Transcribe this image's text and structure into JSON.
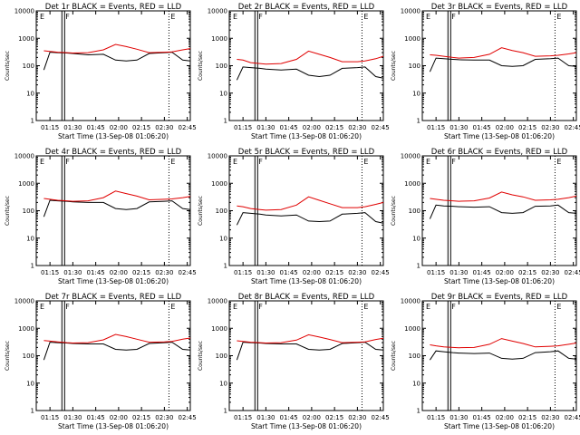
{
  "colors": {
    "events": "#000000",
    "lld": "#e00000",
    "axis": "#000000"
  },
  "chart_data": [
    {
      "type": "line",
      "title": "Det 1r BLACK = Events, RED = LLD",
      "xlabel": "Start Time (13-Sep-08 01:06:20)",
      "ylabel": "Counts/sec",
      "y_scale": "log",
      "ylim": [
        1,
        10000
      ],
      "x": [
        "01:11",
        "01:15",
        "01:20",
        "01:26",
        "01:30",
        "01:40",
        "01:50",
        "01:58",
        "02:05",
        "02:12",
        "02:20",
        "02:30",
        "02:35",
        "02:42",
        "02:47"
      ],
      "xtick_labels": [
        "01:15",
        "01:30",
        "01:45",
        "02:00",
        "02:15",
        "02:30",
        "02:45"
      ],
      "ytick_labels": [
        "1",
        "10",
        "100",
        "1000",
        "10000"
      ],
      "markers": [
        {
          "label": "E",
          "time": "01:06"
        },
        {
          "label": "F",
          "time": "01:24"
        },
        {
          "label": "E",
          "time": "02:33"
        }
      ],
      "series": [
        {
          "name": "Events",
          "values": [
            70,
            310,
            300,
            290,
            280,
            250,
            260,
            160,
            150,
            160,
            280,
            300,
            310,
            160,
            150
          ]
        },
        {
          "name": "LLD",
          "values": [
            350,
            330,
            310,
            300,
            290,
            300,
            380,
            600,
            500,
            400,
            300,
            310,
            320,
            380,
            420
          ]
        }
      ]
    },
    {
      "type": "line",
      "title": "Det 2r BLACK = Events, RED = LLD",
      "xlabel": "Start Time (13-Sep-08 01:06:20)",
      "ylabel": "Counts/sec",
      "y_scale": "log",
      "ylim": [
        1,
        10000
      ],
      "x": [
        "01:11",
        "01:15",
        "01:20",
        "01:26",
        "01:30",
        "01:40",
        "01:50",
        "01:58",
        "02:05",
        "02:12",
        "02:20",
        "02:30",
        "02:35",
        "02:42",
        "02:47"
      ],
      "xtick_labels": [
        "01:15",
        "01:30",
        "01:45",
        "02:00",
        "02:15",
        "02:30",
        "02:45"
      ],
      "ytick_labels": [
        "1",
        "10",
        "100",
        "1000",
        "10000"
      ],
      "markers": [
        {
          "label": "E",
          "time": "01:06"
        },
        {
          "label": "F",
          "time": "01:24"
        },
        {
          "label": "E",
          "time": "02:33"
        }
      ],
      "series": [
        {
          "name": "Events",
          "values": [
            30,
            90,
            85,
            80,
            75,
            70,
            75,
            45,
            40,
            45,
            80,
            85,
            90,
            40,
            35
          ]
        },
        {
          "name": "LLD",
          "values": [
            170,
            160,
            130,
            120,
            115,
            120,
            170,
            340,
            260,
            200,
            140,
            140,
            150,
            180,
            220
          ]
        }
      ]
    },
    {
      "type": "line",
      "title": "Det 3r BLACK = Events, RED = LLD",
      "xlabel": "Start Time (13-Sep-08 01:06:20)",
      "ylabel": "Counts/sec",
      "y_scale": "log",
      "ylim": [
        1,
        10000
      ],
      "x": [
        "01:11",
        "01:15",
        "01:20",
        "01:26",
        "01:30",
        "01:40",
        "01:50",
        "01:58",
        "02:05",
        "02:12",
        "02:20",
        "02:30",
        "02:35",
        "02:42",
        "02:47"
      ],
      "xtick_labels": [
        "01:15",
        "01:30",
        "01:45",
        "02:00",
        "02:15",
        "02:30",
        "02:45"
      ],
      "ytick_labels": [
        "1",
        "10",
        "100",
        "1000",
        "10000"
      ],
      "markers": [
        {
          "label": "E",
          "time": "01:06"
        },
        {
          "label": "F",
          "time": "01:24"
        },
        {
          "label": "E",
          "time": "02:33"
        }
      ],
      "series": [
        {
          "name": "Events",
          "values": [
            60,
            190,
            180,
            170,
            165,
            160,
            160,
            100,
            95,
            100,
            170,
            180,
            190,
            100,
            95
          ]
        },
        {
          "name": "LLD",
          "values": [
            250,
            240,
            220,
            200,
            190,
            200,
            260,
            450,
            360,
            300,
            220,
            230,
            240,
            270,
            300
          ]
        }
      ]
    },
    {
      "type": "line",
      "title": "Det 4r BLACK = Events, RED = LLD",
      "xlabel": "Start Time (13-Sep-08 01:06:20)",
      "ylabel": "Counts/sec",
      "y_scale": "log",
      "ylim": [
        1,
        10000
      ],
      "x": [
        "01:11",
        "01:15",
        "01:20",
        "01:26",
        "01:30",
        "01:40",
        "01:50",
        "01:58",
        "02:05",
        "02:12",
        "02:20",
        "02:30",
        "02:35",
        "02:42",
        "02:47"
      ],
      "xtick_labels": [
        "01:15",
        "01:30",
        "01:45",
        "02:00",
        "02:15",
        "02:30",
        "02:45"
      ],
      "ytick_labels": [
        "1",
        "10",
        "100",
        "1000",
        "10000"
      ],
      "markers": [
        {
          "label": "E",
          "time": "01:06"
        },
        {
          "label": "F",
          "time": "01:24"
        },
        {
          "label": "E",
          "time": "02:33"
        }
      ],
      "series": [
        {
          "name": "Events",
          "values": [
            60,
            240,
            230,
            220,
            210,
            200,
            200,
            120,
            110,
            120,
            210,
            220,
            230,
            120,
            110
          ]
        },
        {
          "name": "LLD",
          "values": [
            280,
            260,
            240,
            230,
            220,
            230,
            300,
            520,
            420,
            340,
            250,
            260,
            270,
            300,
            330
          ]
        }
      ]
    },
    {
      "type": "line",
      "title": "Det 5r BLACK = Events, RED = LLD",
      "xlabel": "Start Time (13-Sep-08 01:06:20)",
      "ylabel": "Counts/sec",
      "y_scale": "log",
      "ylim": [
        1,
        10000
      ],
      "x": [
        "01:11",
        "01:15",
        "01:20",
        "01:26",
        "01:30",
        "01:40",
        "01:50",
        "01:58",
        "02:05",
        "02:12",
        "02:20",
        "02:30",
        "02:35",
        "02:42",
        "02:47"
      ],
      "xtick_labels": [
        "01:15",
        "01:30",
        "01:45",
        "02:00",
        "02:15",
        "02:30",
        "02:45"
      ],
      "ytick_labels": [
        "1",
        "10",
        "100",
        "1000",
        "10000"
      ],
      "markers": [
        {
          "label": "E",
          "time": "01:06"
        },
        {
          "label": "F",
          "time": "01:24"
        },
        {
          "label": "E",
          "time": "02:33"
        }
      ],
      "series": [
        {
          "name": "Events",
          "values": [
            30,
            85,
            80,
            75,
            70,
            65,
            70,
            42,
            40,
            42,
            75,
            80,
            85,
            40,
            35
          ]
        },
        {
          "name": "LLD",
          "values": [
            150,
            140,
            120,
            110,
            105,
            110,
            160,
            320,
            240,
            180,
            130,
            130,
            140,
            170,
            200
          ]
        }
      ]
    },
    {
      "type": "line",
      "title": "Det 6r BLACK = Events, RED = LLD",
      "xlabel": "Start Time (13-Sep-08 01:06:20)",
      "ylabel": "Counts/sec",
      "y_scale": "log",
      "ylim": [
        1,
        10000
      ],
      "x": [
        "01:11",
        "01:15",
        "01:20",
        "01:26",
        "01:30",
        "01:40",
        "01:50",
        "01:58",
        "02:05",
        "02:12",
        "02:20",
        "02:30",
        "02:35",
        "02:42",
        "02:47"
      ],
      "xtick_labels": [
        "01:15",
        "01:30",
        "01:45",
        "02:00",
        "02:15",
        "02:30",
        "02:45"
      ],
      "ytick_labels": [
        "1",
        "10",
        "100",
        "1000",
        "10000"
      ],
      "markers": [
        {
          "label": "E",
          "time": "01:06"
        },
        {
          "label": "F",
          "time": "01:24"
        },
        {
          "label": "E",
          "time": "02:33"
        }
      ],
      "series": [
        {
          "name": "Events",
          "values": [
            50,
            160,
            150,
            145,
            140,
            135,
            140,
            85,
            80,
            85,
            145,
            150,
            160,
            85,
            80
          ]
        },
        {
          "name": "LLD",
          "values": [
            280,
            260,
            240,
            230,
            220,
            230,
            290,
            480,
            380,
            320,
            240,
            250,
            260,
            300,
            340
          ]
        }
      ]
    },
    {
      "type": "line",
      "title": "Det 7r BLACK = Events, RED = LLD",
      "xlabel": "Start Time (13-Sep-08 01:06:20)",
      "ylabel": "Counts/sec",
      "y_scale": "log",
      "ylim": [
        1,
        10000
      ],
      "x": [
        "01:11",
        "01:15",
        "01:20",
        "01:26",
        "01:30",
        "01:40",
        "01:50",
        "01:58",
        "02:05",
        "02:12",
        "02:20",
        "02:30",
        "02:35",
        "02:42",
        "02:47"
      ],
      "xtick_labels": [
        "01:15",
        "01:30",
        "01:45",
        "02:00",
        "02:15",
        "02:30",
        "02:45"
      ],
      "ytick_labels": [
        "1",
        "10",
        "100",
        "1000",
        "10000"
      ],
      "markers": [
        {
          "label": "E",
          "time": "01:06"
        },
        {
          "label": "F",
          "time": "01:24"
        },
        {
          "label": "E",
          "time": "02:33"
        }
      ],
      "series": [
        {
          "name": "Events",
          "values": [
            70,
            310,
            300,
            290,
            280,
            270,
            270,
            170,
            160,
            170,
            280,
            300,
            310,
            170,
            160
          ]
        },
        {
          "name": "LLD",
          "values": [
            360,
            340,
            320,
            300,
            290,
            300,
            380,
            600,
            500,
            400,
            310,
            320,
            330,
            400,
            440
          ]
        }
      ]
    },
    {
      "type": "line",
      "title": "Det 8r BLACK = Events, RED = LLD",
      "xlabel": "Start Time (13-Sep-08 01:06:20)",
      "ylabel": "Counts/sec",
      "y_scale": "log",
      "ylim": [
        1,
        10000
      ],
      "x": [
        "01:11",
        "01:15",
        "01:20",
        "01:26",
        "01:30",
        "01:40",
        "01:50",
        "01:58",
        "02:05",
        "02:12",
        "02:20",
        "02:30",
        "02:35",
        "02:42",
        "02:47"
      ],
      "xtick_labels": [
        "01:15",
        "01:30",
        "01:45",
        "02:00",
        "02:15",
        "02:30",
        "02:45"
      ],
      "ytick_labels": [
        "1",
        "10",
        "100",
        "1000",
        "10000"
      ],
      "markers": [
        {
          "label": "E",
          "time": "01:06"
        },
        {
          "label": "F",
          "time": "01:24"
        },
        {
          "label": "E",
          "time": "02:33"
        }
      ],
      "series": [
        {
          "name": "Events",
          "values": [
            70,
            310,
            300,
            290,
            280,
            270,
            270,
            170,
            160,
            170,
            280,
            300,
            310,
            170,
            160
          ]
        },
        {
          "name": "LLD",
          "values": [
            350,
            330,
            310,
            300,
            290,
            300,
            370,
            580,
            480,
            390,
            300,
            310,
            320,
            390,
            430
          ]
        }
      ]
    },
    {
      "type": "line",
      "title": "Det 9r BLACK = Events, RED = LLD",
      "xlabel": "Start Time (13-Sep-08 01:06:20)",
      "ylabel": "Counts/sec",
      "y_scale": "log",
      "ylim": [
        1,
        10000
      ],
      "x": [
        "01:11",
        "01:15",
        "01:20",
        "01:26",
        "01:30",
        "01:40",
        "01:50",
        "01:58",
        "02:05",
        "02:12",
        "02:20",
        "02:30",
        "02:35",
        "02:42",
        "02:47"
      ],
      "xtick_labels": [
        "01:15",
        "01:30",
        "01:45",
        "02:00",
        "02:15",
        "02:30",
        "02:45"
      ],
      "ytick_labels": [
        "1",
        "10",
        "100",
        "1000",
        "10000"
      ],
      "markers": [
        {
          "label": "E",
          "time": "01:06"
        },
        {
          "label": "F",
          "time": "01:24"
        },
        {
          "label": "E",
          "time": "02:33"
        }
      ],
      "series": [
        {
          "name": "Events",
          "values": [
            70,
            150,
            140,
            130,
            125,
            120,
            125,
            80,
            75,
            80,
            130,
            140,
            150,
            80,
            75
          ]
        },
        {
          "name": "LLD",
          "values": [
            250,
            230,
            210,
            200,
            195,
            200,
            260,
            420,
            340,
            280,
            210,
            220,
            230,
            260,
            290
          ]
        }
      ]
    }
  ]
}
